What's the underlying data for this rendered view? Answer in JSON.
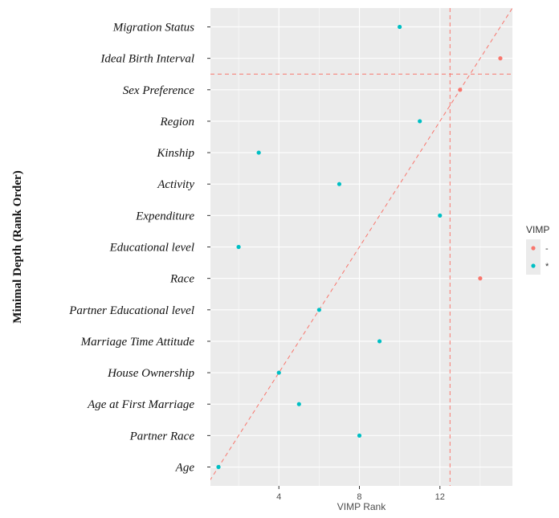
{
  "chart_data": {
    "type": "scatter",
    "ylabel": "Minimal Depth (Rank Order)",
    "xlabel": "VIMP Rank",
    "categories": [
      "Migration Status",
      "Ideal Birth Interval",
      "Sex Preference",
      "Region",
      "Kinship",
      "Activity",
      "Expenditure",
      "Educational level",
      "Race",
      "Partner Educational level",
      "Marriage Time Attitude",
      "House Ownership",
      "Age at First Marriage",
      "Partner Race",
      "Age"
    ],
    "depth_rank": [
      15,
      14,
      13,
      12,
      11,
      10,
      9,
      8,
      7,
      6,
      5,
      4,
      3,
      2,
      1
    ],
    "vimp_rank": [
      10,
      15,
      13,
      11,
      3,
      7,
      12,
      2,
      14,
      6,
      9,
      4,
      5,
      8,
      1
    ],
    "group": [
      "*",
      "-",
      "-",
      "*",
      "*",
      "*",
      "*",
      "*",
      "-",
      "*",
      "*",
      "*",
      "*",
      "*",
      "*"
    ],
    "xticks": [
      4,
      8,
      12
    ],
    "xlim": [
      0.6,
      15.6
    ],
    "ylim": [
      0.4,
      15.6
    ],
    "diagonal_reference": true,
    "vline_x": 12.5,
    "hline_y": 13.5,
    "legend": {
      "title": "VIMP",
      "placement": "right",
      "entries": [
        {
          "label": "-",
          "color": "#F8766D"
        },
        {
          "label": "*",
          "color": "#00BFC4"
        }
      ]
    },
    "colors": {
      "-": "#F8766D",
      "*": "#00BFC4",
      "reference_line": "#F8766D",
      "panel_bg": "#EBEBEB",
      "grid": "#FFFFFF"
    },
    "grid": true
  }
}
